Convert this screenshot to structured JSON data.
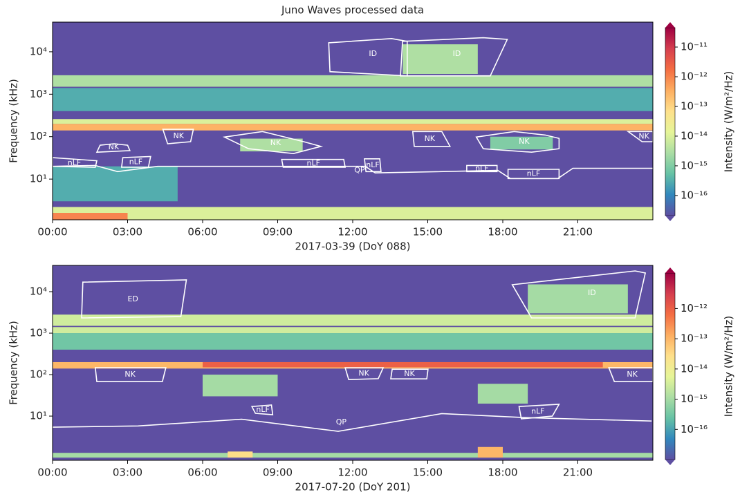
{
  "title": "Juno Waves processed data",
  "chart_data": [
    {
      "type": "spectrogram",
      "xlabel": "2017-03-39 (DoY 088)",
      "ylabel": "Frequency (kHz)",
      "xlim": [
        0,
        24
      ],
      "xticks": [
        {
          "value": 0,
          "label": "00:00"
        },
        {
          "value": 3,
          "label": "03:00"
        },
        {
          "value": 6,
          "label": "06:00"
        },
        {
          "value": 9,
          "label": "09:00"
        },
        {
          "value": 12,
          "label": "12:00"
        },
        {
          "value": 15,
          "label": "15:00"
        },
        {
          "value": 18,
          "label": "18:00"
        },
        {
          "value": 21,
          "label": "21:00"
        }
      ],
      "ylim": [
        1.1,
        50000
      ],
      "log_y": true,
      "yticks": [
        {
          "value": 10,
          "label": "10¹"
        },
        {
          "value": 100,
          "label": "10²"
        },
        {
          "value": 1000,
          "label": "10³"
        },
        {
          "value": 10000,
          "label": "10⁴"
        }
      ],
      "colormap": [
        "#5e4fa2",
        "#3288bd",
        "#66c2a5",
        "#abdda4",
        "#e6f598",
        "#fee08b",
        "#fdae61",
        "#f46d43",
        "#d53e4f",
        "#9e0142"
      ],
      "colorbar": {
        "label": "Intensity (W/m²/Hz)",
        "log": true,
        "lim": [
          2.1e-17,
          4.5e-11
        ],
        "ticks": [
          {
            "value": 1e-16,
            "label": "10⁻¹⁶"
          },
          {
            "value": 1e-15,
            "label": "10⁻¹⁵"
          },
          {
            "value": 1e-14,
            "label": "10⁻¹⁴"
          },
          {
            "value": 1e-13,
            "label": "10⁻¹³"
          },
          {
            "value": 1e-12,
            "label": "10⁻¹²"
          },
          {
            "value": 1e-11,
            "label": "10⁻¹¹"
          }
        ]
      },
      "patches": [
        {
          "x": [
            0,
            24
          ],
          "y": [
            400,
            1400
          ],
          "intensity": 3e-16
        },
        {
          "x": [
            0,
            24
          ],
          "y": [
            1500,
            2800
          ],
          "intensity": 3e-15
        },
        {
          "x": [
            0,
            24
          ],
          "y": [
            200,
            260
          ],
          "intensity": 1e-14
        },
        {
          "x": [
            0,
            24
          ],
          "y": [
            140,
            200
          ],
          "intensity": 3e-13
        },
        {
          "x": [
            0,
            5
          ],
          "y": [
            3,
            20
          ],
          "intensity": 3e-16
        },
        {
          "x": [
            0,
            24
          ],
          "y": [
            1.1,
            2.2
          ],
          "intensity": 1e-14
        },
        {
          "x": [
            0,
            3
          ],
          "y": [
            1.1,
            1.6
          ],
          "intensity": 1e-12
        },
        {
          "x": [
            7.5,
            10
          ],
          "y": [
            45,
            90
          ],
          "intensity": 3e-15
        },
        {
          "x": [
            14,
            17
          ],
          "y": [
            3000,
            15000
          ],
          "intensity": 3e-15
        },
        {
          "x": [
            17.5,
            20
          ],
          "y": [
            50,
            100
          ],
          "intensity": 1e-15
        }
      ],
      "region_color": "#ffffff",
      "regions": [
        {
          "label": "ID",
          "closed": true,
          "x": [
            11.04,
            13.55,
            14.18,
            14.18,
            11.09
          ],
          "y": [
            16300,
            20500,
            17600,
            2700,
            3400
          ]
        },
        {
          "label": "ID",
          "closed": true,
          "x": [
            13.99,
            17.22,
            18.18,
            17.5,
            13.91
          ],
          "y": [
            17600,
            21400,
            19600,
            2700,
            2700
          ]
        },
        {
          "label": "NK",
          "closed": true,
          "x": [
            4.41,
            5.63,
            5.52,
            4.6
          ],
          "y": [
            149,
            149,
            76,
            68
          ]
        },
        {
          "label": "NK",
          "closed": true,
          "x": [
            6.87,
            8.39,
            10.04,
            10.73,
            9.63,
            7.84
          ],
          "y": [
            98,
            132,
            76,
            59,
            40,
            52
          ]
        },
        {
          "label": "NK",
          "closed": true,
          "x": [
            1.9,
            2.46,
            3.0,
            3.09,
            1.77
          ],
          "y": [
            63,
            68,
            63,
            47,
            43
          ]
        },
        {
          "label": "nLF",
          "closed": true,
          "x": [
            0,
            1.77,
            1.71,
            0
          ],
          "y": [
            32,
            27,
            19,
            20
          ]
        },
        {
          "label": "nLF",
          "closed": true,
          "x": [
            2.81,
            3.92,
            3.83,
            2.76
          ],
          "y": [
            32,
            34,
            19,
            19
          ]
        },
        {
          "label": "QP",
          "closed": false,
          "x": [
            0,
            1.7,
            2.6,
            4.2,
            12.5,
            12.9,
            17.8,
            18.3,
            20.2,
            20.8,
            24
          ],
          "y": [
            20,
            21,
            15,
            20,
            20,
            14,
            16,
            10.3,
            10.3,
            18,
            18
          ]
        },
        {
          "label": "nLF",
          "closed": true,
          "x": [
            9.16,
            11.64,
            11.7,
            9.22
          ],
          "y": [
            29,
            29,
            19,
            19
          ]
        },
        {
          "label": "nLF",
          "closed": true,
          "x": [
            12.47,
            13.08,
            13.13,
            12.53
          ],
          "y": [
            30,
            30,
            15,
            15
          ]
        },
        {
          "label": "NK",
          "closed": true,
          "x": [
            14.4,
            15.56,
            15.89,
            14.46
          ],
          "y": [
            132,
            132,
            59,
            59
          ]
        },
        {
          "label": "NK",
          "closed": true,
          "x": [
            16.94,
            18.46,
            19.7,
            20.25,
            20.25,
            19.15,
            17.22
          ],
          "y": [
            98,
            132,
            109,
            91,
            52,
            43,
            52
          ]
        },
        {
          "label": "nLF",
          "closed": true,
          "x": [
            16.56,
            17.77,
            17.77,
            16.56
          ],
          "y": [
            21,
            21,
            15,
            15
          ]
        },
        {
          "label": "nLF",
          "closed": true,
          "x": [
            18.21,
            20.25,
            20.25,
            18.21
          ],
          "y": [
            17,
            17,
            10.3,
            10.3
          ]
        },
        {
          "label": "NK",
          "closed": true,
          "x": [
            23.01,
            24,
            24,
            23.57
          ],
          "y": [
            132,
            132,
            76,
            76
          ]
        }
      ]
    },
    {
      "type": "spectrogram",
      "xlabel": "2017-07-20 (DoY 201)",
      "ylabel": "Frequency (kHz)",
      "xlim": [
        0,
        24
      ],
      "xticks": [
        {
          "value": 0,
          "label": "00:00"
        },
        {
          "value": 3,
          "label": "03:00"
        },
        {
          "value": 6,
          "label": "06:00"
        },
        {
          "value": 9,
          "label": "09:00"
        },
        {
          "value": 12,
          "label": "12:00"
        },
        {
          "value": 15,
          "label": "15:00"
        },
        {
          "value": 18,
          "label": "18:00"
        },
        {
          "value": 21,
          "label": "21:00"
        }
      ],
      "ylim": [
        0.86,
        43000
      ],
      "log_y": true,
      "yticks": [
        {
          "value": 10,
          "label": "10¹"
        },
        {
          "value": 100,
          "label": "10²"
        },
        {
          "value": 1000,
          "label": "10³"
        },
        {
          "value": 10000,
          "label": "10⁴"
        }
      ],
      "colormap": [
        "#5e4fa2",
        "#3288bd",
        "#66c2a5",
        "#abdda4",
        "#e6f598",
        "#fee08b",
        "#fdae61",
        "#f46d43",
        "#d53e4f",
        "#9e0142"
      ],
      "colorbar": {
        "label": "Intensity (W/m²/Hz)",
        "log": true,
        "lim": [
          1e-17,
          1.5e-11
        ],
        "ticks": [
          {
            "value": 1e-16,
            "label": "10⁻¹⁶"
          },
          {
            "value": 1e-15,
            "label": "10⁻¹⁵"
          },
          {
            "value": 1e-14,
            "label": "10⁻¹⁴"
          },
          {
            "value": 1e-13,
            "label": "10⁻¹³"
          },
          {
            "value": 1e-12,
            "label": "10⁻¹²"
          }
        ]
      },
      "patches": [
        {
          "x": [
            0,
            24
          ],
          "y": [
            400,
            1000
          ],
          "intensity": 3e-16
        },
        {
          "x": [
            0,
            24
          ],
          "y": [
            1000,
            1400
          ],
          "intensity": 3e-15
        },
        {
          "x": [
            0,
            24
          ],
          "y": [
            1500,
            2800
          ],
          "intensity": 3e-15
        },
        {
          "x": [
            0,
            24
          ],
          "y": [
            140,
            200
          ],
          "intensity": 1e-13
        },
        {
          "x": [
            6,
            22
          ],
          "y": [
            150,
            200
          ],
          "intensity": 1e-12
        },
        {
          "x": [
            0,
            24
          ],
          "y": [
            1.0,
            1.3
          ],
          "intensity": 1e-15
        },
        {
          "x": [
            7,
            8
          ],
          "y": [
            1.0,
            1.4
          ],
          "intensity": 3e-14
        },
        {
          "x": [
            17,
            18
          ],
          "y": [
            1.0,
            1.8
          ],
          "intensity": 1e-13
        },
        {
          "x": [
            19,
            23
          ],
          "y": [
            3000,
            15000
          ],
          "intensity": 1e-15
        },
        {
          "x": [
            6,
            9
          ],
          "y": [
            30,
            100
          ],
          "intensity": 1e-15
        },
        {
          "x": [
            17,
            19
          ],
          "y": [
            20,
            60
          ],
          "intensity": 1e-15
        }
      ],
      "region_color": "#ffffff",
      "regions": [
        {
          "label": "ED",
          "closed": true,
          "x": [
            1.21,
            5.35,
            5.13,
            1.16
          ],
          "y": [
            17000,
            19200,
            2500,
            2330
          ]
        },
        {
          "label": "ID",
          "closed": true,
          "x": [
            18.38,
            23.29,
            23.7,
            23.29,
            19.15
          ],
          "y": [
            14700,
            31600,
            28200,
            2330,
            2330
          ]
        },
        {
          "label": "NK",
          "closed": true,
          "x": [
            1.71,
            4.53,
            4.39,
            1.77
          ],
          "y": [
            147,
            147,
            68,
            68
          ]
        },
        {
          "label": "NK",
          "closed": true,
          "x": [
            11.7,
            13.22,
            13.02,
            11.84
          ],
          "y": [
            147,
            147,
            80,
            76
          ]
        },
        {
          "label": "NK",
          "closed": true,
          "x": [
            13.58,
            15.01,
            14.96,
            13.52
          ],
          "y": [
            135,
            135,
            79,
            79
          ]
        },
        {
          "label": "NK",
          "closed": true,
          "x": [
            22.24,
            24,
            24,
            22.46
          ],
          "y": [
            147,
            147,
            68,
            68
          ]
        },
        {
          "label": "nLF",
          "closed": true,
          "x": [
            7.97,
            8.75,
            8.8,
            8.11
          ],
          "y": [
            17,
            18.5,
            10.8,
            11.7
          ]
        },
        {
          "label": "nLF",
          "closed": true,
          "x": [
            18.65,
            20.25,
            19.98,
            18.74
          ],
          "y": [
            17,
            19.3,
            10,
            8.6
          ]
        },
        {
          "label": "QP",
          "closed": false,
          "x": [
            0,
            3.42,
            7.56,
            11.42,
            15.56,
            18.87,
            23.95
          ],
          "y": [
            5.4,
            5.8,
            8.4,
            4.3,
            11.5,
            9.2,
            7.6
          ]
        }
      ]
    }
  ]
}
